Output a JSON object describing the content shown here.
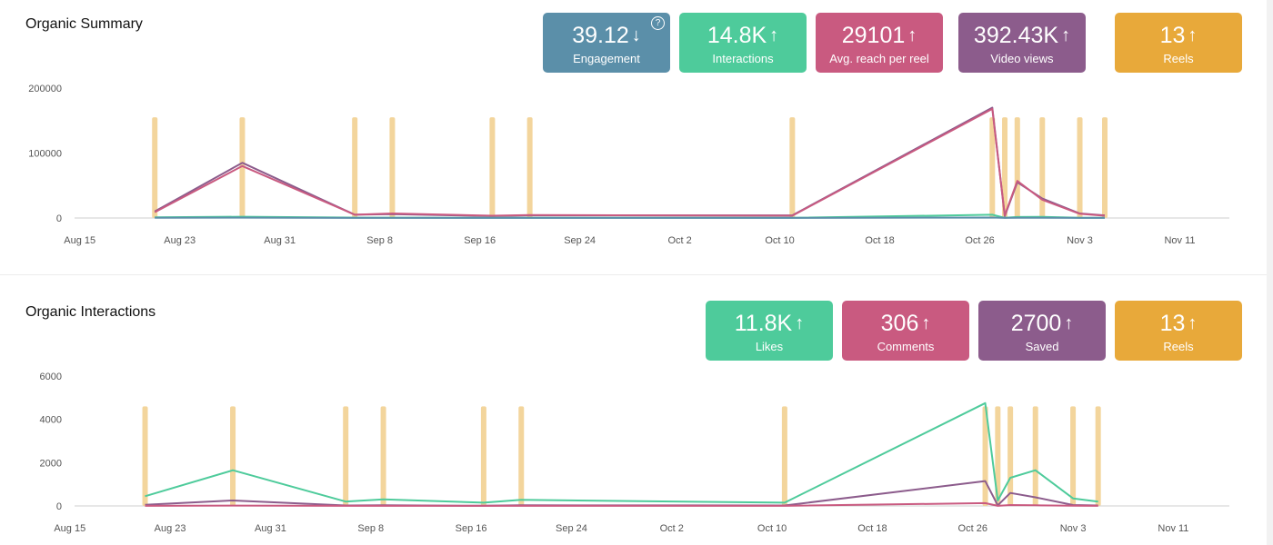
{
  "summary": {
    "title": "Organic Summary",
    "kpis": [
      {
        "value": "39.12",
        "label": "Engagement",
        "trend": "down",
        "color": "#5b8fa9",
        "help": "?"
      },
      {
        "value": "14.8K",
        "label": "Interactions",
        "trend": "up",
        "color": "#4ecb9b"
      },
      {
        "value": "29101",
        "label": "Avg. reach per reel",
        "trend": "up",
        "color": "#c95a80"
      },
      {
        "value": "392.43K",
        "label": "Video views",
        "trend": "up",
        "color": "#8c5c8c"
      },
      {
        "value": "13",
        "label": "Reels",
        "trend": "up",
        "color": "#e8a93a"
      }
    ]
  },
  "interactions": {
    "title": "Organic Interactions",
    "kpis": [
      {
        "value": "11.8K",
        "label": "Likes",
        "trend": "up",
        "color": "#4ecb9b"
      },
      {
        "value": "306",
        "label": "Comments",
        "trend": "up",
        "color": "#c95a80"
      },
      {
        "value": "2700",
        "label": "Saved",
        "trend": "up",
        "color": "#8c5c8c"
      },
      {
        "value": "13",
        "label": "Reels",
        "trend": "up",
        "color": "#e8a93a"
      }
    ]
  },
  "chart_data": [
    {
      "type": "line",
      "y_ticks": [
        "0",
        "100000",
        "200000"
      ],
      "ylim": [
        0,
        200000
      ],
      "x_ticks": [
        "Aug 15",
        "Aug 23",
        "Aug 31",
        "Sep 8",
        "Sep 16",
        "Sep 24",
        "Oct 2",
        "Oct 10",
        "Oct 18",
        "Oct 26",
        "Nov 3",
        "Nov 11"
      ],
      "xlim": [
        "Aug 14",
        "Nov 13"
      ],
      "reel_markers": [
        "Aug 21",
        "Aug 28",
        "Sep 6",
        "Sep 9",
        "Sep 17",
        "Sep 20",
        "Oct 11",
        "Oct 27",
        "Oct 28",
        "Oct 29",
        "Oct 31",
        "Nov 3",
        "Nov 5"
      ],
      "reel_color": "#f3d59c",
      "reel_height": 155000,
      "grid": false,
      "series": [
        {
          "color": "#8c5c8c",
          "points": [
            [
              "Aug 21",
              10000
            ],
            [
              "Aug 28",
              85000
            ],
            [
              "Sep 6",
              5000
            ],
            [
              "Sep 9",
              6000
            ],
            [
              "Sep 17",
              3000
            ],
            [
              "Sep 20",
              4000
            ],
            [
              "Oct 11",
              4000
            ],
            [
              "Oct 27",
              170000
            ],
            [
              "Oct 28",
              3000
            ],
            [
              "Oct 29",
              55000
            ],
            [
              "Oct 31",
              30000
            ],
            [
              "Nov 3",
              7000
            ],
            [
              "Nov 5",
              4000
            ]
          ]
        },
        {
          "color": "#c95a80",
          "points": [
            [
              "Aug 21",
              9000
            ],
            [
              "Aug 28",
              80000
            ],
            [
              "Sep 6",
              5000
            ],
            [
              "Sep 9",
              7000
            ],
            [
              "Sep 17",
              3500
            ],
            [
              "Sep 20",
              4500
            ],
            [
              "Oct 11",
              3500
            ],
            [
              "Oct 27",
              168000
            ],
            [
              "Oct 28",
              4000
            ],
            [
              "Oct 29",
              57000
            ],
            [
              "Oct 31",
              28000
            ],
            [
              "Nov 3",
              6500
            ],
            [
              "Nov 5",
              3500
            ]
          ]
        },
        {
          "color": "#4ecb9b",
          "points": [
            [
              "Aug 21",
              1000
            ],
            [
              "Aug 28",
              2000
            ],
            [
              "Sep 6",
              500
            ],
            [
              "Sep 9",
              500
            ],
            [
              "Sep 17",
              300
            ],
            [
              "Sep 20",
              400
            ],
            [
              "Oct 11",
              300
            ],
            [
              "Oct 27",
              5000
            ],
            [
              "Oct 28",
              300
            ],
            [
              "Oct 29",
              1500
            ],
            [
              "Oct 31",
              1700
            ],
            [
              "Nov 3",
              400
            ],
            [
              "Nov 5",
              300
            ]
          ]
        },
        {
          "color": "#5b8fa9",
          "points": [
            [
              "Aug 21",
              300
            ],
            [
              "Aug 28",
              500
            ],
            [
              "Sep 6",
              200
            ],
            [
              "Sep 9",
              200
            ],
            [
              "Sep 17",
              100
            ],
            [
              "Sep 20",
              150
            ],
            [
              "Oct 11",
              100
            ],
            [
              "Oct 27",
              700
            ],
            [
              "Oct 28",
              100
            ],
            [
              "Oct 29",
              300
            ],
            [
              "Oct 31",
              300
            ],
            [
              "Nov 3",
              100
            ],
            [
              "Nov 5",
              100
            ]
          ]
        }
      ]
    },
    {
      "type": "line",
      "y_ticks": [
        "0",
        "2000",
        "4000",
        "6000"
      ],
      "ylim": [
        0,
        6000
      ],
      "x_ticks": [
        "Aug 15",
        "Aug 23",
        "Aug 31",
        "Sep 8",
        "Sep 16",
        "Sep 24",
        "Oct 2",
        "Oct 10",
        "Oct 18",
        "Oct 26",
        "Nov 3",
        "Nov 11"
      ],
      "xlim": [
        "Aug 14",
        "Nov 13"
      ],
      "reel_markers": [
        "Aug 21",
        "Aug 28",
        "Sep 6",
        "Sep 9",
        "Sep 17",
        "Sep 20",
        "Oct 11",
        "Oct 27",
        "Oct 28",
        "Oct 29",
        "Oct 31",
        "Nov 3",
        "Nov 5"
      ],
      "reel_color": "#f3d59c",
      "reel_height": 4600,
      "grid": false,
      "series": [
        {
          "color": "#4ecb9b",
          "points": [
            [
              "Aug 21",
              450
            ],
            [
              "Aug 28",
              1650
            ],
            [
              "Sep 6",
              200
            ],
            [
              "Sep 9",
              300
            ],
            [
              "Sep 17",
              150
            ],
            [
              "Sep 20",
              280
            ],
            [
              "Oct 11",
              150
            ],
            [
              "Oct 27",
              4750
            ],
            [
              "Oct 28",
              250
            ],
            [
              "Oct 29",
              1300
            ],
            [
              "Oct 31",
              1650
            ],
            [
              "Nov 3",
              350
            ],
            [
              "Nov 5",
              200
            ]
          ]
        },
        {
          "color": "#8c5c8c",
          "points": [
            [
              "Aug 21",
              50
            ],
            [
              "Aug 28",
              250
            ],
            [
              "Sep 6",
              20
            ],
            [
              "Sep 9",
              30
            ],
            [
              "Sep 17",
              10
            ],
            [
              "Sep 20",
              30
            ],
            [
              "Oct 11",
              20
            ],
            [
              "Oct 27",
              1150
            ],
            [
              "Oct 28",
              30
            ],
            [
              "Oct 29",
              600
            ],
            [
              "Oct 31",
              400
            ],
            [
              "Nov 3",
              40
            ],
            [
              "Nov 5",
              20
            ]
          ]
        },
        {
          "color": "#c95a80",
          "points": [
            [
              "Aug 21",
              5
            ],
            [
              "Aug 28",
              15
            ],
            [
              "Sep 6",
              5
            ],
            [
              "Sep 9",
              5
            ],
            [
              "Sep 17",
              3
            ],
            [
              "Sep 20",
              5
            ],
            [
              "Oct 11",
              5
            ],
            [
              "Oct 27",
              130
            ],
            [
              "Oct 28",
              5
            ],
            [
              "Oct 29",
              40
            ],
            [
              "Oct 31",
              30
            ],
            [
              "Nov 3",
              10
            ],
            [
              "Nov 5",
              5
            ]
          ]
        }
      ]
    }
  ]
}
